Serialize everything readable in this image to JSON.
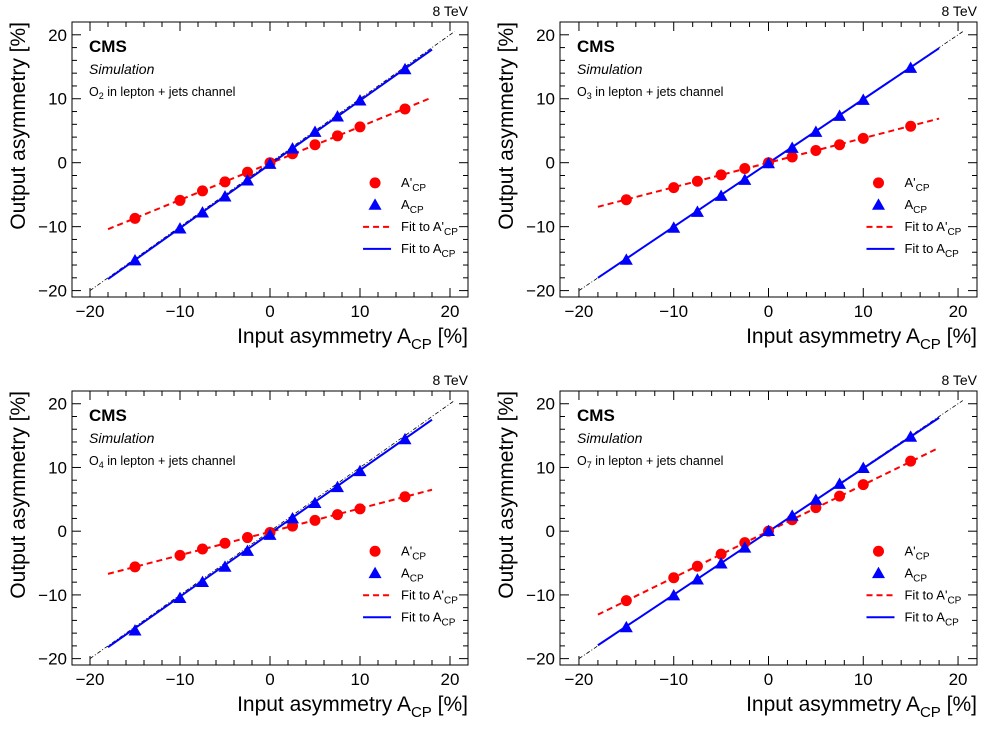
{
  "chart_data": [
    {
      "type": "scatter",
      "energy_label": "8 TeV",
      "experiment": "CMS",
      "status": "Simulation",
      "channel_label": {
        "var": "O",
        "sub": "2",
        "rest": " in lepton + jets channel"
      },
      "xlabel": {
        "main": "Input asymmetry A",
        "sub": "CP",
        "suffix": " [%]"
      },
      "ylabel": "Output asymmetry [%]",
      "xlim": [
        -22,
        22
      ],
      "ylim": [
        -21,
        22
      ],
      "xticks": [
        -20,
        -10,
        0,
        10,
        20
      ],
      "yticks": [
        -20,
        -10,
        0,
        10,
        20
      ],
      "legend_position": "bottom-right",
      "legend": [
        {
          "main": "A'",
          "sub": "CP",
          "kind": "circle"
        },
        {
          "main": "A",
          "sub": "CP",
          "kind": "triangle"
        },
        {
          "main": "Fit to A'",
          "sub": "CP",
          "kind": "dashed"
        },
        {
          "main": "Fit to A",
          "sub": "CP",
          "kind": "solid"
        }
      ],
      "series": [
        {
          "marker": "circle",
          "color": "#ff0000",
          "x": [
            -15,
            -10,
            -7.5,
            -5,
            -2.5,
            0,
            2.5,
            5,
            7.5,
            10,
            15
          ],
          "y": [
            -8.7,
            -5.9,
            -4.4,
            -3.0,
            -1.5,
            0.0,
            1.4,
            2.8,
            4.2,
            5.6,
            8.4
          ]
        },
        {
          "marker": "triangle",
          "color": "#0000ff",
          "x": [
            -15,
            -10,
            -7.5,
            -5,
            -2.5,
            0,
            2.5,
            5,
            7.5,
            10,
            15
          ],
          "y": [
            -15.3,
            -10.3,
            -7.8,
            -5.3,
            -2.8,
            -0.2,
            2.2,
            4.8,
            7.2,
            9.7,
            14.6
          ]
        }
      ],
      "fits": [
        {
          "style": "dashed",
          "color": "#ff0000",
          "x": [
            -18,
            18
          ],
          "y": [
            -10.4,
            10.2
          ]
        },
        {
          "style": "solid",
          "color": "#0000ff",
          "x": [
            -18,
            18
          ],
          "y": [
            -18.2,
            17.7
          ]
        }
      ]
    },
    {
      "type": "scatter",
      "energy_label": "8 TeV",
      "experiment": "CMS",
      "status": "Simulation",
      "channel_label": {
        "var": "O",
        "sub": "3",
        "rest": " in lepton + jets channel"
      },
      "xlabel": {
        "main": "Input asymmetry A",
        "sub": "CP",
        "suffix": " [%]"
      },
      "ylabel": "Output asymmetry [%]",
      "xlim": [
        -22,
        22
      ],
      "ylim": [
        -21,
        22
      ],
      "xticks": [
        -20,
        -10,
        0,
        10,
        20
      ],
      "yticks": [
        -20,
        -10,
        0,
        10,
        20
      ],
      "legend_position": "bottom-right",
      "legend": [
        {
          "main": "A'",
          "sub": "CP",
          "kind": "circle"
        },
        {
          "main": "A",
          "sub": "CP",
          "kind": "triangle"
        },
        {
          "main": "Fit to A'",
          "sub": "CP",
          "kind": "dashed"
        },
        {
          "main": "Fit to A",
          "sub": "CP",
          "kind": "solid"
        }
      ],
      "series": [
        {
          "marker": "circle",
          "color": "#ff0000",
          "x": [
            -15,
            -10,
            -7.5,
            -5,
            -2.5,
            0,
            2.5,
            5,
            7.5,
            10,
            15
          ],
          "y": [
            -5.8,
            -3.9,
            -2.9,
            -1.9,
            -0.9,
            0.0,
            0.9,
            1.9,
            2.8,
            3.8,
            5.7
          ]
        },
        {
          "marker": "triangle",
          "color": "#0000ff",
          "x": [
            -15,
            -10,
            -7.5,
            -5,
            -2.5,
            0,
            2.5,
            5,
            7.5,
            10,
            15
          ],
          "y": [
            -15.2,
            -10.2,
            -7.7,
            -5.2,
            -2.7,
            -0.1,
            2.3,
            4.8,
            7.3,
            9.8,
            14.8
          ]
        }
      ],
      "fits": [
        {
          "style": "dashed",
          "color": "#ff0000",
          "x": [
            -18,
            18
          ],
          "y": [
            -6.9,
            6.9
          ]
        },
        {
          "style": "solid",
          "color": "#0000ff",
          "x": [
            -18,
            18
          ],
          "y": [
            -18.0,
            17.9
          ]
        }
      ]
    },
    {
      "type": "scatter",
      "energy_label": "8 TeV",
      "experiment": "CMS",
      "status": "Simulation",
      "channel_label": {
        "var": "O",
        "sub": "4",
        "rest": " in lepton + jets channel"
      },
      "xlabel": {
        "main": "Input asymmetry A",
        "sub": "CP",
        "suffix": " [%]"
      },
      "ylabel": "Output asymmetry [%]",
      "xlim": [
        -22,
        22
      ],
      "ylim": [
        -21,
        22
      ],
      "xticks": [
        -20,
        -10,
        0,
        10,
        20
      ],
      "yticks": [
        -20,
        -10,
        0,
        10,
        20
      ],
      "legend_position": "bottom-right",
      "legend": [
        {
          "main": "A'",
          "sub": "CP",
          "kind": "circle"
        },
        {
          "main": "A",
          "sub": "CP",
          "kind": "triangle"
        },
        {
          "main": "Fit to A'",
          "sub": "CP",
          "kind": "dashed"
        },
        {
          "main": "Fit to A",
          "sub": "CP",
          "kind": "solid"
        }
      ],
      "series": [
        {
          "marker": "circle",
          "color": "#ff0000",
          "x": [
            -15,
            -10,
            -7.5,
            -5,
            -2.5,
            0,
            2.5,
            5,
            7.5,
            10,
            15
          ],
          "y": [
            -5.6,
            -3.8,
            -2.8,
            -1.9,
            -1.0,
            -0.2,
            0.8,
            1.7,
            2.6,
            3.5,
            5.4
          ]
        },
        {
          "marker": "triangle",
          "color": "#0000ff",
          "x": [
            -15,
            -10,
            -7.5,
            -5,
            -2.5,
            0,
            2.5,
            5,
            7.5,
            10,
            15
          ],
          "y": [
            -15.6,
            -10.5,
            -8.0,
            -5.6,
            -3.1,
            -0.6,
            2.0,
            4.4,
            6.9,
            9.4,
            14.4
          ]
        }
      ],
      "fits": [
        {
          "style": "dashed",
          "color": "#ff0000",
          "x": [
            -18,
            18
          ],
          "y": [
            -6.7,
            6.5
          ]
        },
        {
          "style": "solid",
          "color": "#0000ff",
          "x": [
            -18,
            18
          ],
          "y": [
            -18.2,
            17.5
          ]
        }
      ]
    },
    {
      "type": "scatter",
      "energy_label": "8 TeV",
      "experiment": "CMS",
      "status": "Simulation",
      "channel_label": {
        "var": "O",
        "sub": "7",
        "rest": " in lepton + jets channel"
      },
      "xlabel": {
        "main": "Input asymmetry A",
        "sub": "CP",
        "suffix": " [%]"
      },
      "ylabel": "Output asymmetry [%]",
      "xlim": [
        -22,
        22
      ],
      "ylim": [
        -21,
        22
      ],
      "xticks": [
        -20,
        -10,
        0,
        10,
        20
      ],
      "yticks": [
        -20,
        -10,
        0,
        10,
        20
      ],
      "legend_position": "bottom-right",
      "legend": [
        {
          "main": "A'",
          "sub": "CP",
          "kind": "circle"
        },
        {
          "main": "A",
          "sub": "CP",
          "kind": "triangle"
        },
        {
          "main": "Fit to A'",
          "sub": "CP",
          "kind": "dashed"
        },
        {
          "main": "Fit to A",
          "sub": "CP",
          "kind": "solid"
        }
      ],
      "series": [
        {
          "marker": "circle",
          "color": "#ff0000",
          "x": [
            -15,
            -10,
            -7.5,
            -5,
            -2.5,
            0,
            2.5,
            5,
            7.5,
            10,
            15
          ],
          "y": [
            -10.9,
            -7.3,
            -5.5,
            -3.6,
            -1.8,
            0.0,
            1.8,
            3.7,
            5.5,
            7.3,
            11.0
          ]
        },
        {
          "marker": "triangle",
          "color": "#0000ff",
          "x": [
            -15,
            -10,
            -7.5,
            -5,
            -2.5,
            0,
            2.5,
            5,
            7.5,
            10,
            15
          ],
          "y": [
            -15.1,
            -10.1,
            -7.6,
            -5.1,
            -2.6,
            0.0,
            2.4,
            4.9,
            7.4,
            9.9,
            14.8
          ]
        }
      ],
      "fits": [
        {
          "style": "dashed",
          "color": "#ff0000",
          "x": [
            -18,
            18
          ],
          "y": [
            -13.1,
            13.1
          ]
        },
        {
          "style": "solid",
          "color": "#0000ff",
          "x": [
            -18,
            18
          ],
          "y": [
            -17.9,
            17.8
          ]
        }
      ]
    }
  ]
}
